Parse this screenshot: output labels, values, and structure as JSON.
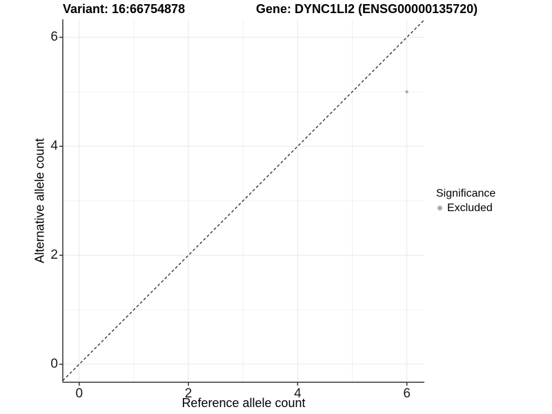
{
  "header": {
    "variant_title": "Variant: 16:66754878",
    "gene_title": "Gene: DYNC1LI2 (ENSG00000135720)"
  },
  "chart_data": {
    "type": "scatter",
    "xlabel": "Reference allele count",
    "ylabel": "Alternative allele count",
    "xlim": [
      -0.3,
      6.32
    ],
    "ylim": [
      -0.33,
      6.33
    ],
    "x_ticks": [
      0,
      2,
      4,
      6
    ],
    "y_ticks": [
      0,
      2,
      4,
      6
    ],
    "x_minor_ticks": [
      1,
      3,
      5
    ],
    "y_minor_ticks": [
      1,
      3,
      5
    ],
    "grid": true,
    "series": [
      {
        "name": "Excluded",
        "color": "#ababab",
        "points": [
          {
            "x": 6,
            "y": 5
          }
        ]
      }
    ],
    "reference_line": {
      "type": "identity",
      "style": "dashed",
      "color": "#111111"
    },
    "legend": {
      "title": "Significance",
      "position": "right",
      "items": [
        {
          "label": "Excluded",
          "color": "#ababab",
          "marker": "circle"
        }
      ]
    }
  }
}
